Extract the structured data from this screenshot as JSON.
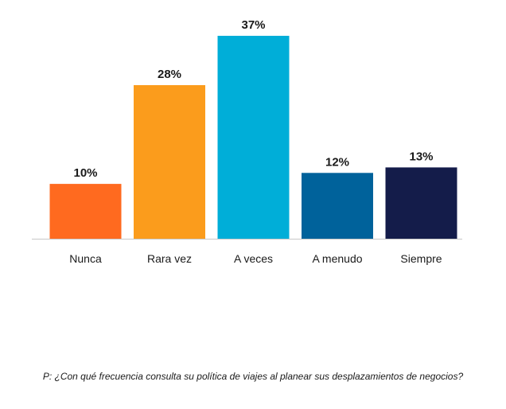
{
  "chart_data": {
    "type": "bar",
    "categories": [
      "Nunca",
      "Rara vez",
      "A veces",
      "A menudo",
      "Siempre"
    ],
    "values": [
      10,
      28,
      37,
      12,
      13
    ],
    "value_labels": [
      "10%",
      "28%",
      "37%",
      "12%",
      "13%"
    ],
    "colors": [
      "#ff6a1f",
      "#fb9c1c",
      "#00aed8",
      "#00629b",
      "#141c4a"
    ],
    "ylim": [
      0,
      37
    ],
    "grid": false,
    "legend": "none",
    "xlabel": "",
    "ylabel": ""
  },
  "footnote": "P: ¿Con qué frecuencia consulta su política de viajes al planear sus desplazamientos de negocios?"
}
